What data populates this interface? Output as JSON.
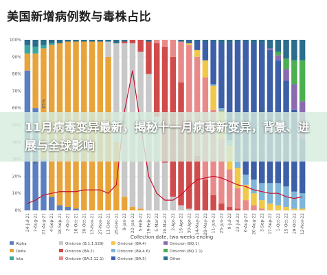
{
  "page": {
    "title": "美国新增病例数与毒株占比",
    "banner_text": "11月病毒变异最新，揭秘十一月病毒新变异，背景、进展与全球影响"
  },
  "colors": {
    "Alpha": "#5b7fc0",
    "Delta": "#e8a33a",
    "Iota": "#3aa7a0",
    "Omicron (B.1.1.529)": "#c8c8c8",
    "Omicron (BA.2)": "#d04b4b",
    "Omicron (BA.2.12.1)": "#e88a8a",
    "Omicron (BA.4)": "#f0c84a",
    "Omicron (BA.4.6)": "#7fb5d8",
    "Omicron (BA.5)": "#3c5fa8",
    "Other": "#2a6d8c",
    "Omicron (BQ.1)": "#8a6bb0",
    "Omicron (BQ.1.1)": "#4caf50",
    "line": "#c8102e",
    "grid": "#e6e6e6"
  },
  "chart_data": {
    "type": "bar",
    "stacked": true,
    "ylim": [
      0,
      100
    ],
    "yticks": [
      "0%",
      "10%",
      "20%",
      "30%",
      "40%",
      "50%",
      "60%",
      "70%",
      "80%",
      "90%",
      "100%"
    ],
    "xlabel": "Collection date, two weeks ending",
    "grid": true,
    "legend_position": "bottom",
    "categories": [
      "24-Jul-21",
      "7-Aug-21",
      "21-Aug-21",
      "4-Sep-21",
      "18-Sep-21",
      "2-Oct-21",
      "16-Oct-21",
      "30-Oct-21",
      "13-Nov-21",
      "27-Nov-21",
      "11-Dec-21",
      "25-Dec-21",
      "8-Jan-22",
      "22-Jan-22",
      "5-Feb-22",
      "19-Feb-22",
      "5-Mar-22",
      "19-Mar-22",
      "2-Apr-22",
      "16-Apr-22",
      "30-Apr-22",
      "14-May-22",
      "28-May-22",
      "11-Jun-22",
      "25-Jun-22",
      "9-Jul-22",
      "23-Jul-22",
      "6-Aug-22",
      "20-Aug-22",
      "3-Sep-22",
      "17-Sep-22",
      "1-Oct-22",
      "15-Oct-22",
      "29-Oct-22",
      "12-Nov-22"
    ],
    "series": [
      {
        "name": "Alpha",
        "values": [
          82,
          60,
          30,
          8,
          3,
          2,
          1,
          0,
          0,
          0,
          0,
          0,
          0,
          0,
          0,
          0,
          0,
          0,
          0,
          0,
          0,
          0,
          0,
          0,
          0,
          0,
          0,
          0,
          0,
          0,
          0,
          0,
          0,
          0,
          0
        ]
      },
      {
        "name": "Delta",
        "values": [
          10,
          32,
          65,
          89,
          95,
          97,
          98,
          99,
          99,
          99,
          90,
          40,
          8,
          2,
          1,
          0,
          0,
          0,
          0,
          0,
          0,
          0,
          0,
          0,
          0,
          0,
          0,
          0,
          0,
          0,
          0,
          0,
          0,
          0,
          0
        ]
      },
      {
        "name": "Iota",
        "values": [
          5,
          4,
          2,
          1,
          0,
          0,
          0,
          0,
          0,
          0,
          0,
          0,
          0,
          0,
          0,
          0,
          0,
          0,
          0,
          0,
          0,
          0,
          0,
          0,
          0,
          0,
          0,
          0,
          0,
          0,
          0,
          0,
          0,
          0,
          0
        ]
      },
      {
        "name": "Omicron (B.1.1.529)",
        "values": [
          0,
          0,
          0,
          0,
          0,
          0,
          0,
          0,
          0,
          0,
          9,
          58,
          90,
          96,
          92,
          80,
          55,
          28,
          8,
          3,
          1,
          0,
          0,
          0,
          0,
          0,
          0,
          0,
          0,
          0,
          0,
          0,
          0,
          0,
          0
        ]
      },
      {
        "name": "Omicron (BA.2)",
        "values": [
          0,
          0,
          0,
          0,
          0,
          0,
          0,
          0,
          0,
          0,
          0,
          0,
          1,
          2,
          7,
          19,
          43,
          68,
          82,
          72,
          52,
          32,
          18,
          9,
          4,
          2,
          1,
          0,
          0,
          0,
          0,
          0,
          0,
          0,
          0
        ]
      },
      {
        "name": "Omicron (BA.2.12.1)",
        "values": [
          0,
          0,
          0,
          0,
          0,
          0,
          0,
          0,
          0,
          0,
          0,
          0,
          0,
          0,
          0,
          0,
          2,
          4,
          10,
          24,
          44,
          58,
          60,
          50,
          38,
          22,
          12,
          6,
          3,
          1,
          0,
          0,
          0,
          0,
          0
        ]
      },
      {
        "name": "Omicron (BA.4)",
        "values": [
          0,
          0,
          0,
          0,
          0,
          0,
          0,
          0,
          0,
          0,
          0,
          0,
          0,
          0,
          0,
          0,
          0,
          0,
          0,
          0,
          1,
          4,
          10,
          14,
          16,
          14,
          12,
          9,
          7,
          5,
          4,
          3,
          2,
          1,
          1
        ]
      },
      {
        "name": "Omicron (BA.4.6)",
        "values": [
          0,
          0,
          0,
          0,
          0,
          0,
          0,
          0,
          0,
          0,
          0,
          0,
          0,
          0,
          0,
          0,
          0,
          0,
          0,
          0,
          0,
          0,
          0,
          1,
          2,
          3,
          4,
          6,
          8,
          10,
          12,
          13,
          12,
          10,
          9
        ]
      },
      {
        "name": "Omicron (BA.5)",
        "values": [
          0,
          0,
          0,
          0,
          0,
          0,
          0,
          0,
          0,
          0,
          0,
          0,
          0,
          0,
          0,
          0,
          0,
          0,
          0,
          0,
          1,
          5,
          11,
          25,
          38,
          57,
          70,
          78,
          80,
          82,
          78,
          72,
          62,
          48,
          32
        ]
      },
      {
        "name": "Omicron (BQ.1)",
        "values": [
          0,
          0,
          0,
          0,
          0,
          0,
          0,
          0,
          0,
          0,
          0,
          0,
          0,
          0,
          0,
          0,
          0,
          0,
          0,
          0,
          0,
          0,
          0,
          0,
          0,
          0,
          0,
          0,
          0,
          0,
          1,
          3,
          7,
          15,
          22
        ]
      },
      {
        "name": "Omicron (BQ.1.1)",
        "values": [
          0,
          0,
          0,
          0,
          0,
          0,
          0,
          0,
          0,
          0,
          0,
          0,
          0,
          0,
          0,
          0,
          0,
          0,
          0,
          0,
          0,
          0,
          0,
          0,
          0,
          0,
          0,
          0,
          0,
          0,
          0,
          2,
          6,
          14,
          24
        ]
      },
      {
        "name": "Other",
        "values": [
          3,
          4,
          3,
          2,
          2,
          1,
          1,
          1,
          1,
          1,
          1,
          2,
          1,
          0,
          0,
          1,
          0,
          0,
          0,
          1,
          1,
          1,
          1,
          1,
          2,
          2,
          1,
          1,
          2,
          2,
          5,
          7,
          11,
          12,
          12
        ]
      }
    ],
    "line": {
      "values": [
        4,
        6,
        9,
        10,
        11,
        11,
        11,
        12,
        12,
        12,
        10,
        15,
        58,
        82,
        50,
        20,
        10,
        6,
        6,
        9,
        14,
        18,
        19,
        20,
        19,
        17,
        15,
        14,
        12,
        11,
        10,
        10,
        8,
        7,
        8
      ]
    },
    "bar_labels": [
      {
        "index": 0,
        "series": "Alpha",
        "text": "82%"
      },
      {
        "index": 1,
        "series": "Alpha",
        "text": "60%"
      },
      {
        "index": 2,
        "series": "Delta",
        "text": "65%"
      },
      {
        "index": 12,
        "series": "Omicron (B.1.1.529)",
        "text": "90%"
      },
      {
        "index": 18,
        "series": "Omicron (BA.2)",
        "text": "82%"
      },
      {
        "index": 22,
        "series": "Omicron (BA.2.12.1)",
        "text": "60%"
      },
      {
        "index": 29,
        "series": "Omicron (BA.5)",
        "text": "82%"
      }
    ]
  }
}
